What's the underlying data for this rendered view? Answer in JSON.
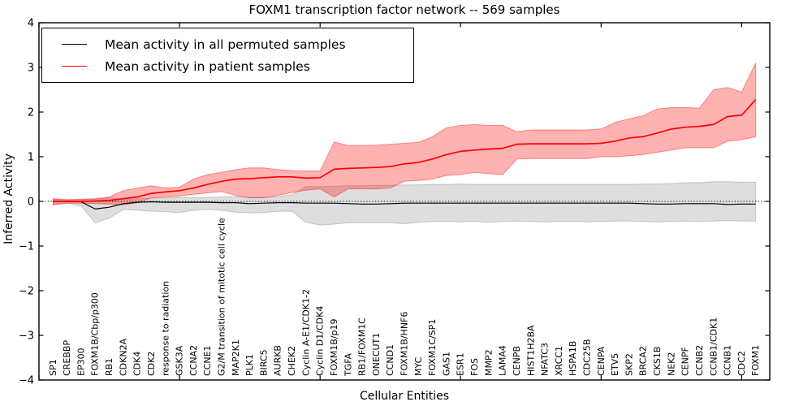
{
  "chart_data": {
    "type": "line",
    "title": "FOXM1 transcription factor network -- 569 samples",
    "xlabel": "Cellular Entities",
    "ylabel": "Inferred Activity",
    "grid": false,
    "legend_position": "upper left",
    "xlim": [
      0,
      52
    ],
    "ylim": [
      -4,
      4
    ],
    "xticks": [
      0,
      10,
      20,
      30,
      40,
      50
    ],
    "yticks": [
      4,
      3,
      2,
      1,
      0,
      -1,
      -2,
      -3,
      -4
    ],
    "ytick_labels": [
      "4",
      "3",
      "2",
      "1",
      "0",
      "−1",
      "−2",
      "−3",
      "−4"
    ],
    "zero_reference_line": {
      "value": 0,
      "style": "dotted",
      "color": "#000000"
    },
    "categories": [
      "SP1",
      "CREBBP",
      "EP300",
      "FOXM1B/Cbp/p300",
      "RB1",
      "CDKN2A",
      "CDK4",
      "CDK2",
      "response to radiation",
      "GSK3A",
      "CCNA2",
      "CCNE1",
      "G2/M transition of mitotic cell cycle",
      "MAP2K1",
      "PLK1",
      "BIRC5",
      "AURKB",
      "CHEK2",
      "Cyclin A-E1/CDK1-2",
      "Cyclin D1/CDK4",
      "FOXM1B/p19",
      "TGFA",
      "RB1/FOXM1C",
      "ONECUT1",
      "CCND1",
      "FOXM1B/HNF6",
      "MYC",
      "FOXM1C/SP1",
      "GAS1",
      "ESR1",
      "FOS",
      "MMP2",
      "LAMA4",
      "CENPB",
      "HIST1H2BA",
      "NFATC3",
      "XRCC1",
      "HSPA1B",
      "CDC25B",
      "CENPA",
      "ETV5",
      "SKP2",
      "BRCA2",
      "CKS1B",
      "NEK2",
      "CENPF",
      "CCNB2",
      "CCNB1/CDK1",
      "CCNB1",
      "CDC2",
      "FOXM1"
    ],
    "series": [
      {
        "key": "permuted",
        "name": "Mean activity in all permuted samples",
        "color": "#000000",
        "line_width": 1.2,
        "band_color": "rgba(0,0,0,0.13)",
        "band_edge": "rgba(0,0,0,0.18)",
        "mean": [
          0.0,
          0.0,
          -0.01,
          -0.17,
          -0.13,
          -0.05,
          -0.02,
          -0.01,
          -0.02,
          -0.02,
          -0.02,
          -0.02,
          -0.03,
          -0.03,
          -0.05,
          -0.04,
          -0.03,
          -0.03,
          -0.04,
          -0.04,
          -0.04,
          -0.05,
          -0.06,
          -0.06,
          -0.05,
          -0.04,
          -0.04,
          -0.04,
          -0.04,
          -0.04,
          -0.04,
          -0.04,
          -0.04,
          -0.04,
          -0.04,
          -0.04,
          -0.04,
          -0.04,
          -0.04,
          -0.04,
          -0.04,
          -0.04,
          -0.05,
          -0.06,
          -0.06,
          -0.05,
          -0.05,
          -0.05,
          -0.07,
          -0.06,
          -0.06
        ],
        "upper": [
          0.05,
          0.03,
          0.05,
          0.07,
          0.08,
          0.05,
          0.06,
          0.07,
          0.08,
          0.09,
          0.08,
          0.09,
          0.1,
          0.1,
          0.09,
          0.09,
          0.1,
          0.15,
          0.33,
          0.33,
          0.34,
          0.35,
          0.35,
          0.36,
          0.36,
          0.37,
          0.37,
          0.38,
          0.38,
          0.39,
          0.38,
          0.38,
          0.38,
          0.38,
          0.38,
          0.38,
          0.38,
          0.38,
          0.38,
          0.38,
          0.38,
          0.38,
          0.39,
          0.39,
          0.4,
          0.42,
          0.42,
          0.44,
          0.44,
          0.43,
          0.43
        ],
        "lower": [
          -0.06,
          -0.04,
          -0.1,
          -0.48,
          -0.38,
          -0.18,
          -0.2,
          -0.22,
          -0.23,
          -0.25,
          -0.2,
          -0.18,
          -0.2,
          -0.24,
          -0.26,
          -0.25,
          -0.22,
          -0.22,
          -0.47,
          -0.53,
          -0.51,
          -0.48,
          -0.48,
          -0.48,
          -0.48,
          -0.5,
          -0.47,
          -0.45,
          -0.45,
          -0.46,
          -0.45,
          -0.47,
          -0.45,
          -0.44,
          -0.45,
          -0.46,
          -0.45,
          -0.45,
          -0.46,
          -0.45,
          -0.44,
          -0.44,
          -0.45,
          -0.46,
          -0.45,
          -0.44,
          -0.45,
          -0.44,
          -0.43,
          -0.44,
          -0.44
        ]
      },
      {
        "key": "patient",
        "name": "Mean activity in patient samples",
        "color": "#ff0000",
        "line_width": 1.7,
        "band_color": "rgba(255,0,0,0.30)",
        "band_edge": "rgba(255,0,0,0.40)",
        "mean": [
          0.0,
          0.0,
          0.0,
          0.01,
          0.02,
          0.06,
          0.1,
          0.18,
          0.21,
          0.24,
          0.3,
          0.38,
          0.45,
          0.5,
          0.51,
          0.53,
          0.55,
          0.55,
          0.52,
          0.53,
          0.72,
          0.74,
          0.75,
          0.76,
          0.78,
          0.84,
          0.87,
          0.95,
          1.05,
          1.12,
          1.15,
          1.17,
          1.19,
          1.28,
          1.29,
          1.29,
          1.29,
          1.29,
          1.29,
          1.3,
          1.35,
          1.42,
          1.45,
          1.53,
          1.62,
          1.66,
          1.68,
          1.72,
          1.9,
          1.93,
          2.28
        ],
        "upper": [
          0.06,
          0.04,
          0.04,
          0.05,
          0.1,
          0.24,
          0.3,
          0.35,
          0.3,
          0.32,
          0.5,
          0.6,
          0.65,
          0.71,
          0.75,
          0.75,
          0.71,
          0.69,
          0.68,
          0.68,
          1.33,
          1.25,
          1.25,
          1.26,
          1.28,
          1.3,
          1.32,
          1.45,
          1.65,
          1.7,
          1.72,
          1.7,
          1.7,
          1.56,
          1.6,
          1.6,
          1.6,
          1.6,
          1.6,
          1.62,
          1.77,
          1.85,
          1.92,
          2.07,
          2.1,
          2.1,
          2.09,
          2.5,
          2.55,
          2.45,
          3.1
        ],
        "lower": [
          -0.08,
          -0.04,
          -0.04,
          -0.05,
          -0.06,
          -0.08,
          -0.03,
          0.08,
          0.1,
          0.12,
          0.16,
          0.19,
          0.22,
          0.13,
          0.08,
          0.08,
          0.13,
          0.2,
          0.25,
          0.28,
          0.1,
          0.28,
          0.28,
          0.28,
          0.3,
          0.45,
          0.47,
          0.5,
          0.58,
          0.6,
          0.65,
          0.62,
          0.6,
          0.95,
          0.96,
          0.96,
          0.96,
          0.96,
          0.96,
          1.0,
          1.0,
          1.02,
          1.05,
          1.1,
          1.15,
          1.2,
          1.2,
          1.2,
          1.35,
          1.38,
          1.45
        ]
      }
    ]
  }
}
